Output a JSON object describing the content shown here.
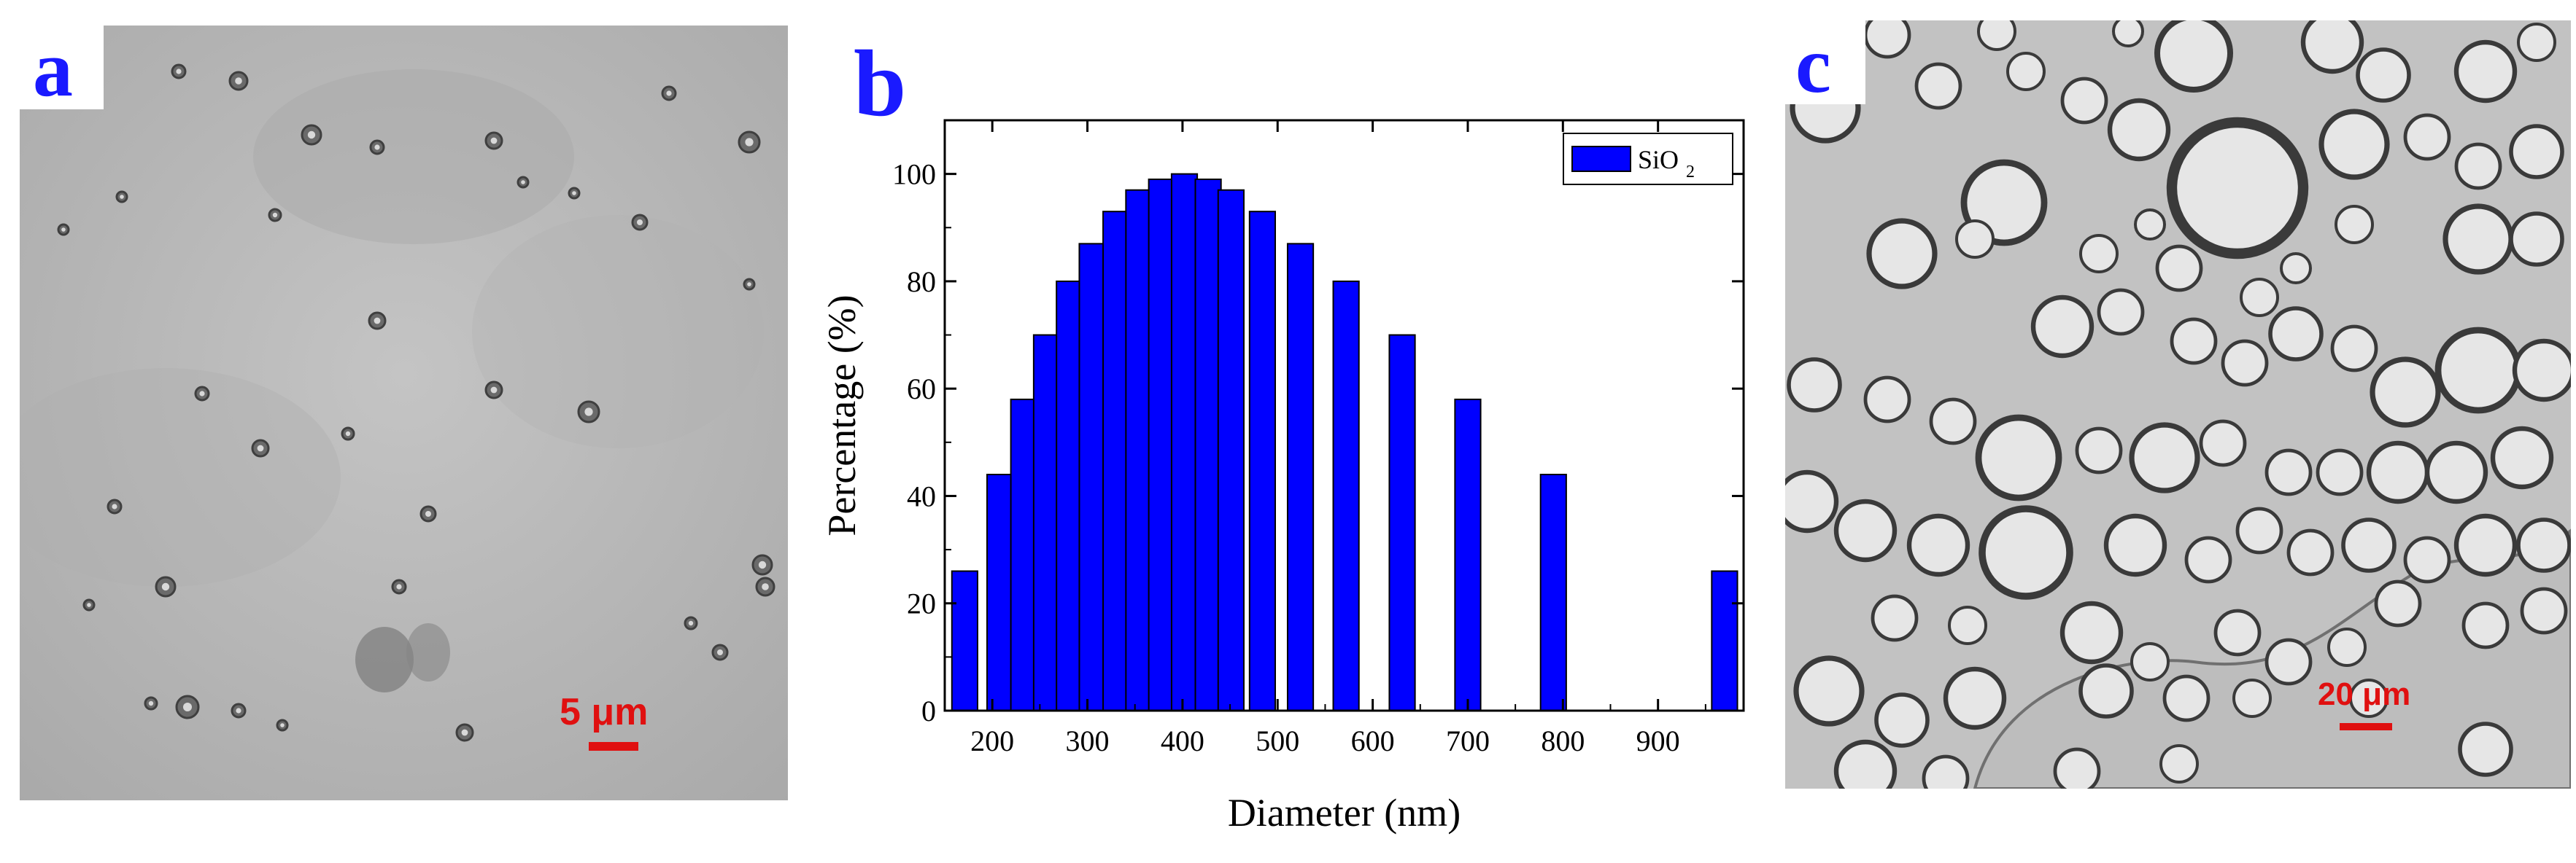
{
  "panel_a": {
    "letter": "a",
    "scale_bar_label": "5 μm"
  },
  "panel_b": {
    "letter": "b"
  },
  "panel_c": {
    "letter": "c",
    "scale_bar_label": "20 μm"
  },
  "chart_data": {
    "type": "bar",
    "title": "",
    "xlabel": "Diameter (nm)",
    "ylabel": "Percentage (%)",
    "xlim": [
      150,
      990
    ],
    "ylim": [
      0,
      110
    ],
    "xticks": [
      200,
      300,
      400,
      500,
      600,
      700,
      800,
      900
    ],
    "yticks": [
      0,
      20,
      40,
      60,
      80,
      100
    ],
    "legend_position": "top-right",
    "bar_color": "#0000ff",
    "series": [
      {
        "name": "SiO2",
        "legend_label": "SiO",
        "legend_subscript": "2",
        "x": [
          171,
          208,
          233,
          257,
          281,
          305,
          330,
          354,
          378,
          402,
          427,
          451,
          484,
          524,
          572,
          631,
          700,
          790,
          970
        ],
        "values": [
          26,
          44,
          58,
          70,
          80,
          87,
          93,
          97,
          99,
          100,
          99,
          97,
          93,
          87,
          80,
          70,
          58,
          44,
          26
        ]
      }
    ]
  }
}
